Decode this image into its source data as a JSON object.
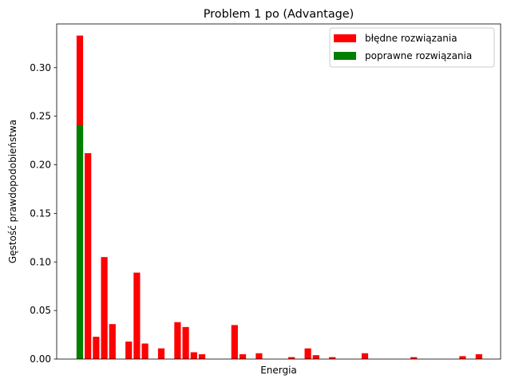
{
  "chart_data": {
    "type": "bar",
    "title": "Problem 1 po (Advantage)",
    "xlabel": "Energia",
    "ylabel": "Gęstość prawdopodobieństwa",
    "ylim": [
      0,
      0.345
    ],
    "yticks": [
      "0.00",
      "0.05",
      "0.10",
      "0.15",
      "0.20",
      "0.25",
      "0.30"
    ],
    "ytick_values": [
      0,
      0.05,
      0.1,
      0.15,
      0.2,
      0.25,
      0.3
    ],
    "xticks_shown": false,
    "grid": false,
    "legend_position": "top-right",
    "series": [
      {
        "name": "błędne rozwiązania",
        "color": "#ff0000",
        "points": [
          {
            "x": 0,
            "y": 0.333
          },
          {
            "x": 1,
            "y": 0.212
          },
          {
            "x": 2,
            "y": 0.023
          },
          {
            "x": 3,
            "y": 0.105
          },
          {
            "x": 4,
            "y": 0.036
          },
          {
            "x": 6,
            "y": 0.018
          },
          {
            "x": 7,
            "y": 0.089
          },
          {
            "x": 8,
            "y": 0.016
          },
          {
            "x": 10,
            "y": 0.011
          },
          {
            "x": 12,
            "y": 0.038
          },
          {
            "x": 13,
            "y": 0.033
          },
          {
            "x": 14,
            "y": 0.007
          },
          {
            "x": 15,
            "y": 0.005
          },
          {
            "x": 19,
            "y": 0.035
          },
          {
            "x": 20,
            "y": 0.005
          },
          {
            "x": 22,
            "y": 0.006
          },
          {
            "x": 26,
            "y": 0.002
          },
          {
            "x": 28,
            "y": 0.011
          },
          {
            "x": 29,
            "y": 0.004
          },
          {
            "x": 31,
            "y": 0.002
          },
          {
            "x": 35,
            "y": 0.006
          },
          {
            "x": 41,
            "y": 0.002
          },
          {
            "x": 47,
            "y": 0.003
          },
          {
            "x": 49,
            "y": 0.005
          }
        ]
      },
      {
        "name": "poprawne rozwiązania",
        "color": "#008000",
        "points": [
          {
            "x": 0,
            "y": 0.241
          }
        ]
      }
    ]
  }
}
